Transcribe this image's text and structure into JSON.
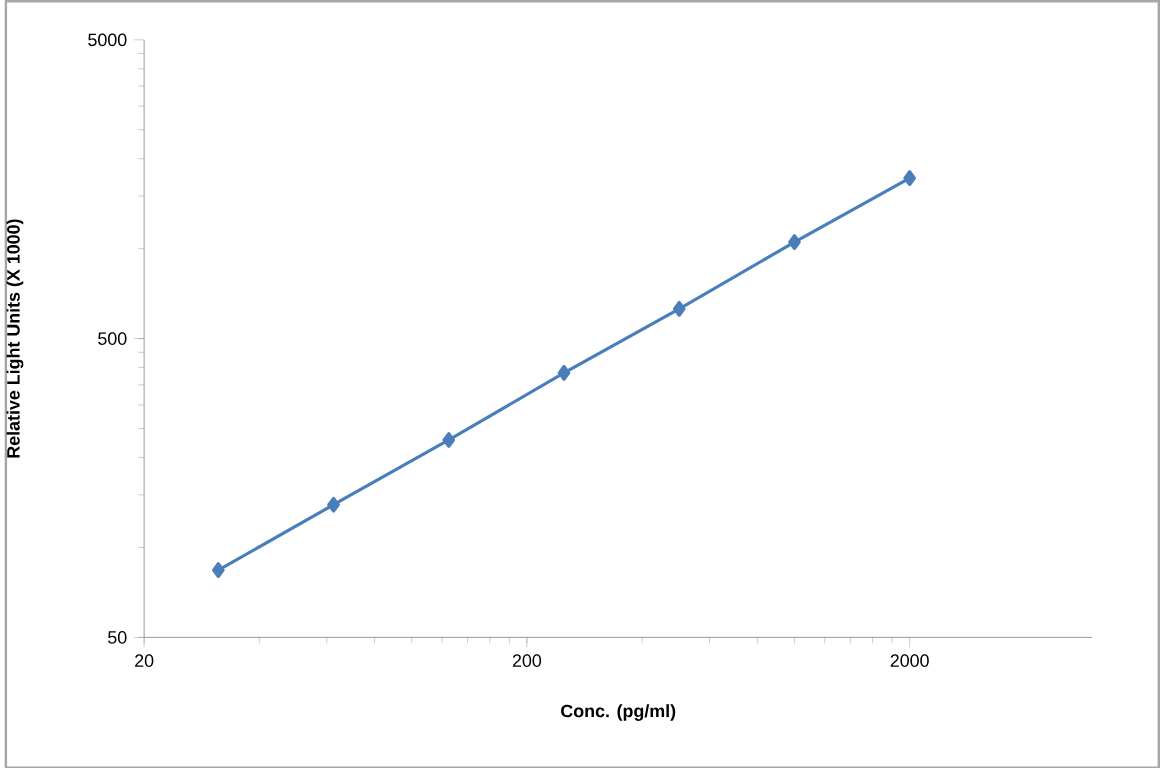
{
  "chart_data": {
    "type": "line",
    "xlabel": "Conc. (pg/ml)",
    "ylabel": "Relative Light Units (X 1000)",
    "log": "xy",
    "xlim": [
      20,
      6000
    ],
    "xticks": [
      20,
      200,
      2000
    ],
    "ylim": [
      50,
      5000
    ],
    "yticks": [
      50,
      500,
      5000
    ],
    "x": [
      31.25,
      62.5,
      125,
      250,
      500,
      1000,
      2000
    ],
    "series": [
      {
        "color": "#4a7ebb",
        "values": [
          84,
          139,
          229,
          384,
          629,
          1052,
          1723
        ]
      }
    ],
    "marker": "diamond",
    "line_style": "solid"
  }
}
